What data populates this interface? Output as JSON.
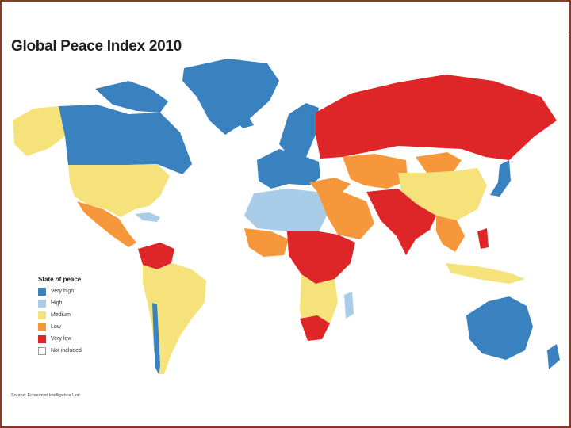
{
  "title": "Global Peace Index 2010",
  "legend": {
    "title": "State of peace",
    "items": [
      {
        "label": "Very high",
        "color": "#3a81c0"
      },
      {
        "label": "High",
        "color": "#a9cde8"
      },
      {
        "label": "Medium",
        "color": "#f6e27a"
      },
      {
        "label": "Low",
        "color": "#f5973a"
      },
      {
        "label": "Very low",
        "color": "#de2527"
      },
      {
        "label": "Not included",
        "color": "#ffffff"
      }
    ]
  },
  "source": "Source: Economist Intelligence Unit."
}
